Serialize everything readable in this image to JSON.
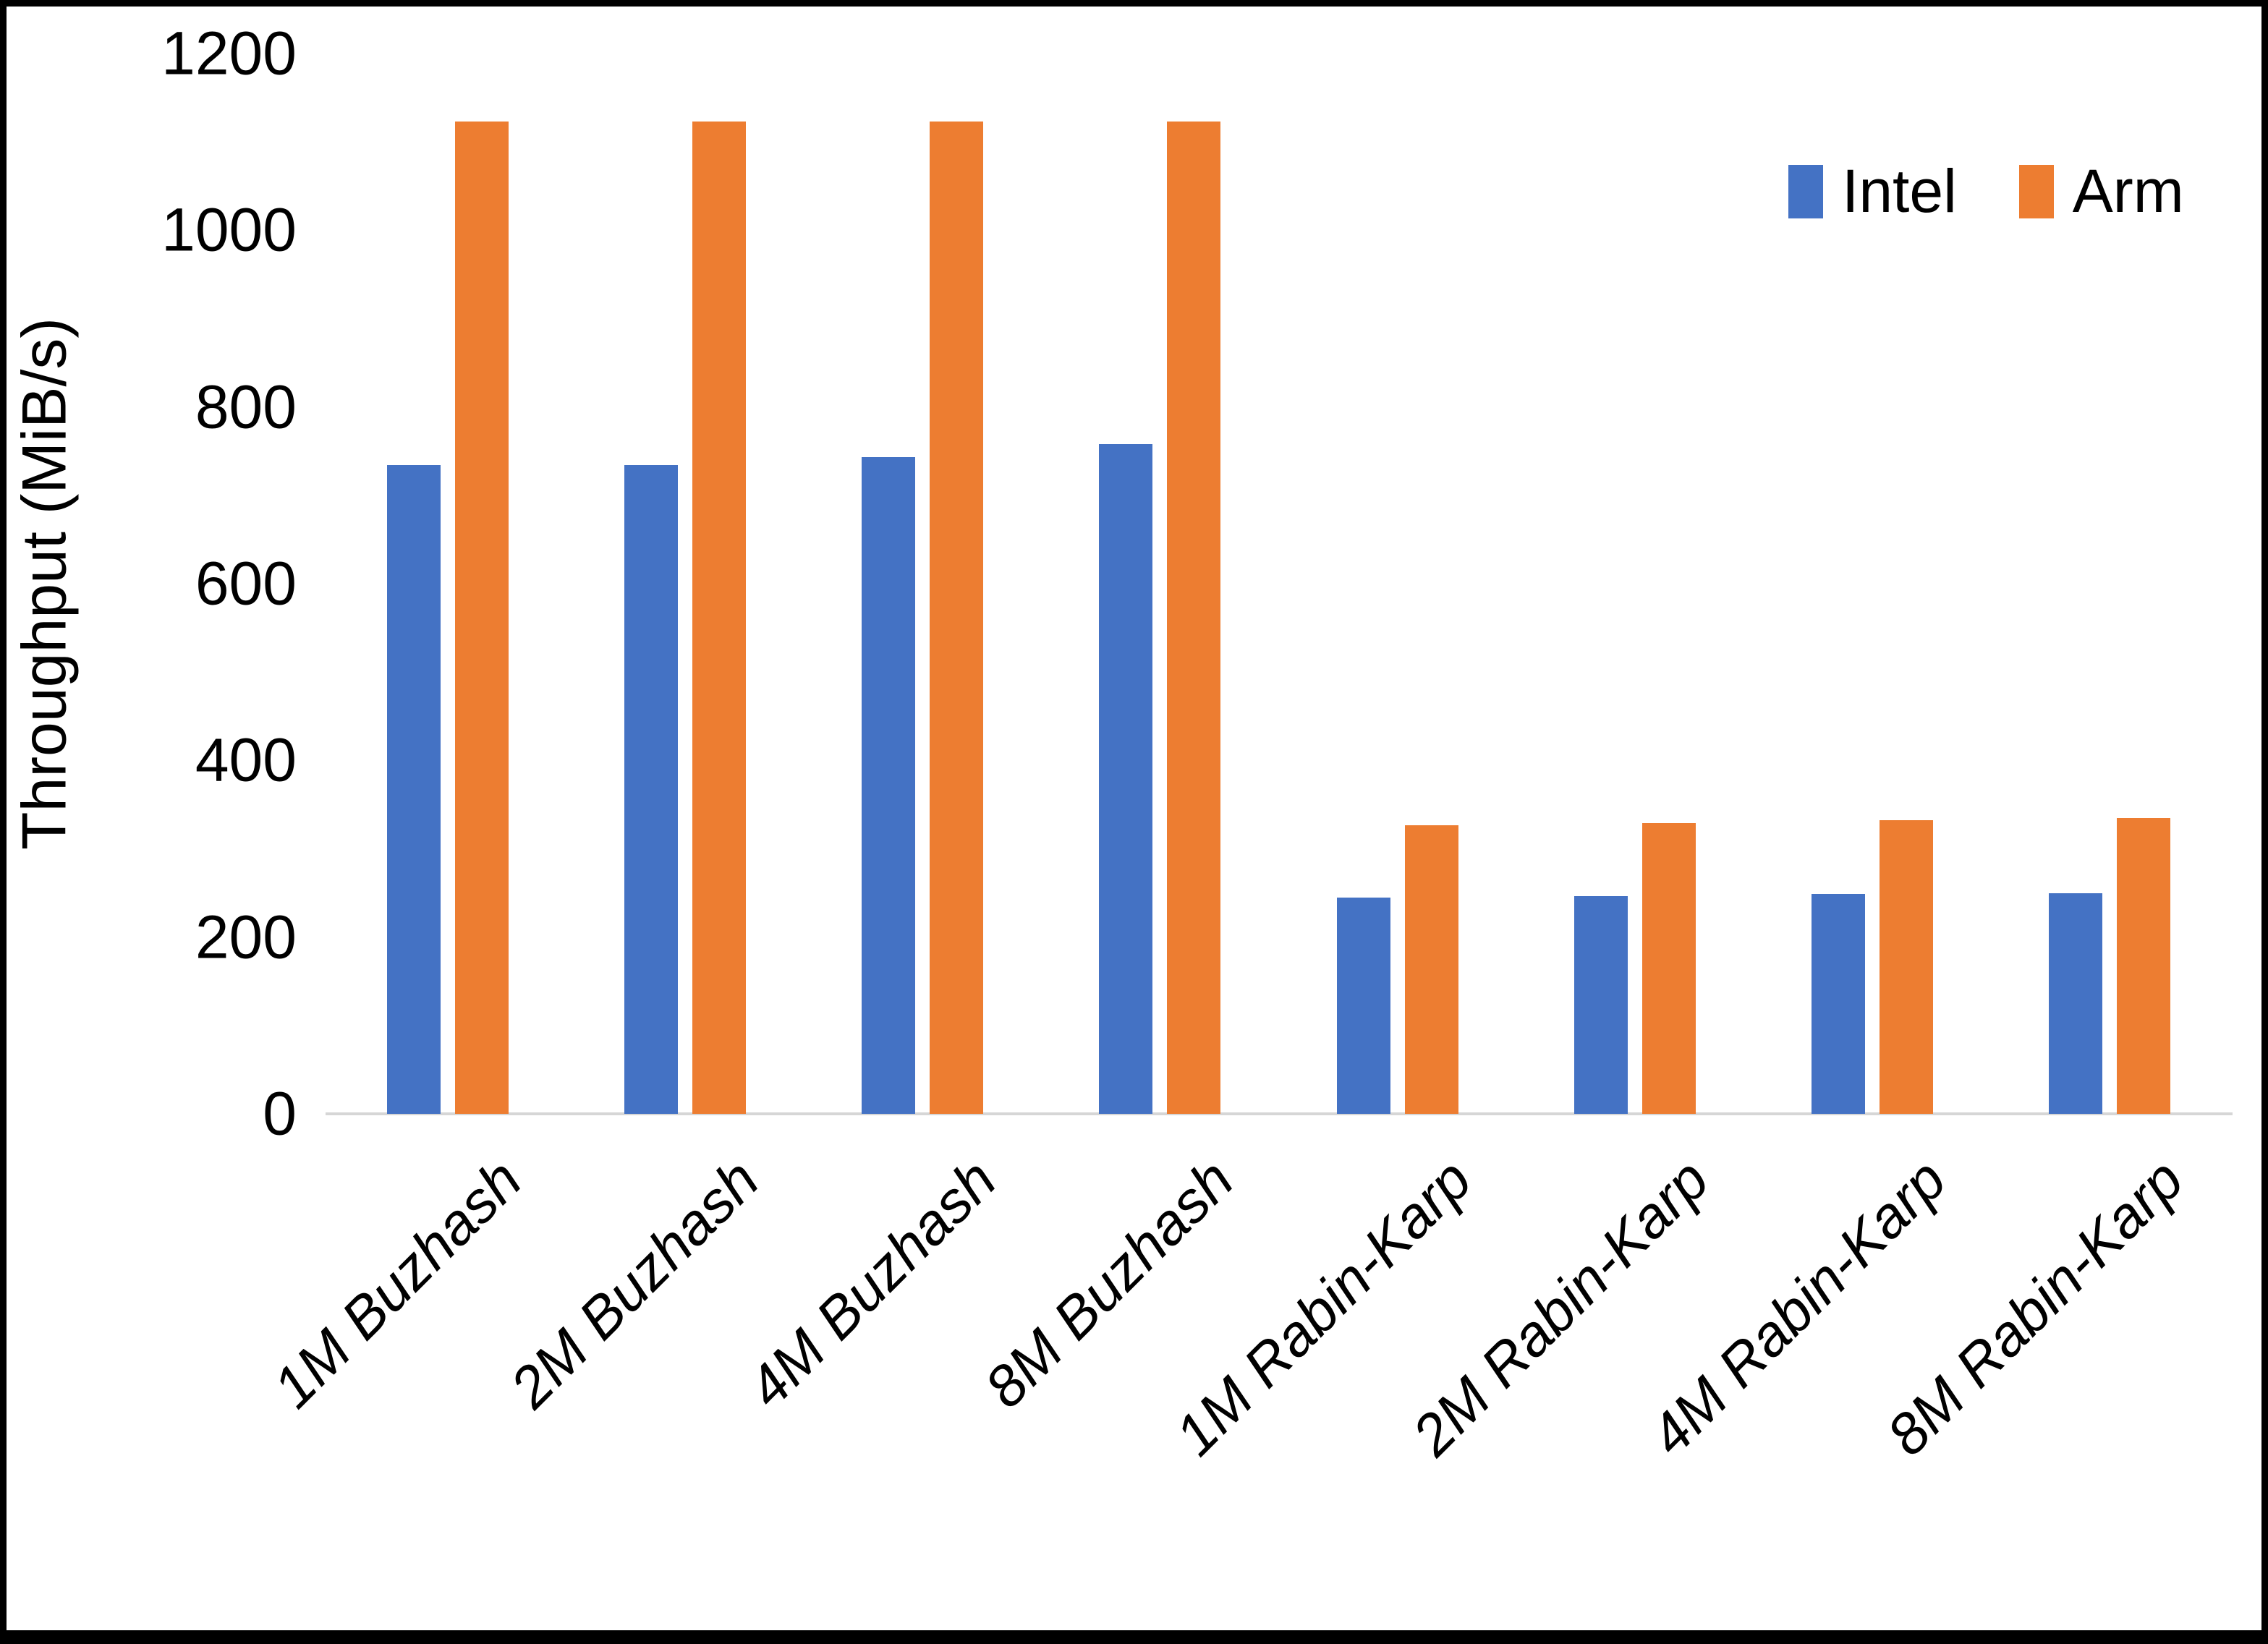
{
  "y_axis": {
    "title": "Throughput (MiB/s)",
    "tick_labels": [
      "0",
      "200",
      "400",
      "600",
      "800",
      "1000",
      "1200"
    ]
  },
  "legend": {
    "items": [
      {
        "label": "Intel",
        "color": "#4472C4"
      },
      {
        "label": "Arm",
        "color": "#ED7D31"
      }
    ]
  },
  "chart_data": {
    "type": "bar",
    "title": "",
    "categories": [
      "1M Buzhash",
      "2M Buzhash",
      "4M Buzhash",
      "8M Buzhash",
      "1M Rabin-Karp",
      "2M Rabin-Karp",
      "4M Rabin-Karp",
      "8M Rabin-Karp"
    ],
    "series": [
      {
        "name": "Intel",
        "color": "#4472C4",
        "values": [
          734,
          734,
          743,
          758,
          245,
          246,
          249,
          250
        ]
      },
      {
        "name": "Arm",
        "color": "#ED7D31",
        "values": [
          1123,
          1123,
          1123,
          1123,
          327,
          329,
          332,
          335
        ]
      }
    ],
    "xlabel": "",
    "ylabel": "Throughput (MiB/s)",
    "ylim": [
      0,
      1200
    ],
    "yticks": [
      0,
      200,
      400,
      600,
      800,
      1000,
      1200
    ],
    "grid": false,
    "legend_position": "top-right",
    "x_label_rotation_deg": -45,
    "axis_line_color": "#D6D6D6",
    "background": "#FFFFFF"
  }
}
